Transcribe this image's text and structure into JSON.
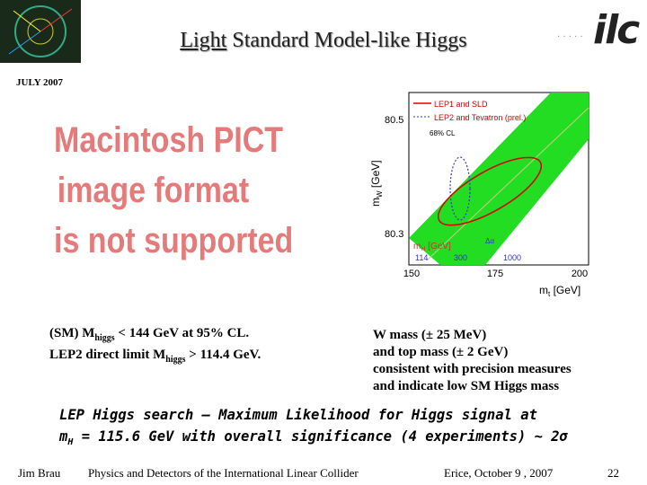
{
  "header": {
    "title_underlined": "Light",
    "title_rest": " Standard Model-like Higgs",
    "date": "JULY 2007",
    "logo": "ilc"
  },
  "placeholder": {
    "lines": [
      "Macintosh PICT",
      "image format",
      "is not supported"
    ]
  },
  "left_text": {
    "lines": [
      {
        "pre": "(SM) M",
        "sub": "higgs",
        "post": " < 144 GeV at 95% CL."
      },
      {
        "pre": "LEP2 direct limit M",
        "sub": "higgs",
        "post": " > 114.4 GeV."
      }
    ]
  },
  "right_text": {
    "lines": [
      "W mass (± 25 MeV)",
      "and top mass (± 2 GeV)",
      "consistent with precision measures",
      "and indicate low SM Higgs mass"
    ]
  },
  "figure": {
    "legend": [
      "LEP1 and SLD",
      "LEP2 and Tevatron (prel.)",
      "68% CL"
    ],
    "y_label": "m",
    "y_label_sub": "W",
    "y_unit": " [GeV]",
    "x_label": "m",
    "x_label_sub": "t",
    "x_unit": " [GeV]",
    "yticks": [
      "80.5",
      "80.3"
    ],
    "xticks": [
      "150",
      "175",
      "200"
    ],
    "mh_label": "m",
    "mh_sub": "H",
    "mh_unit": " [GeV]",
    "mh_ticks": [
      "114",
      "300",
      "1000"
    ],
    "delta": "Δα"
  },
  "bottom_text": {
    "line1": "LEP Higgs search – Maximum Likelihood for Higgs signal at",
    "line2_pre": "m",
    "line2_sub": "H",
    "line2_post": " = 115.6 GeV with overall significance (4 experiments) ~ 2σ"
  },
  "footer": {
    "author": "Jim Brau",
    "talk": "Physics and Detectors of the International Linear Collider",
    "venue": "Erice, October 9 , 2007",
    "page": "22"
  }
}
